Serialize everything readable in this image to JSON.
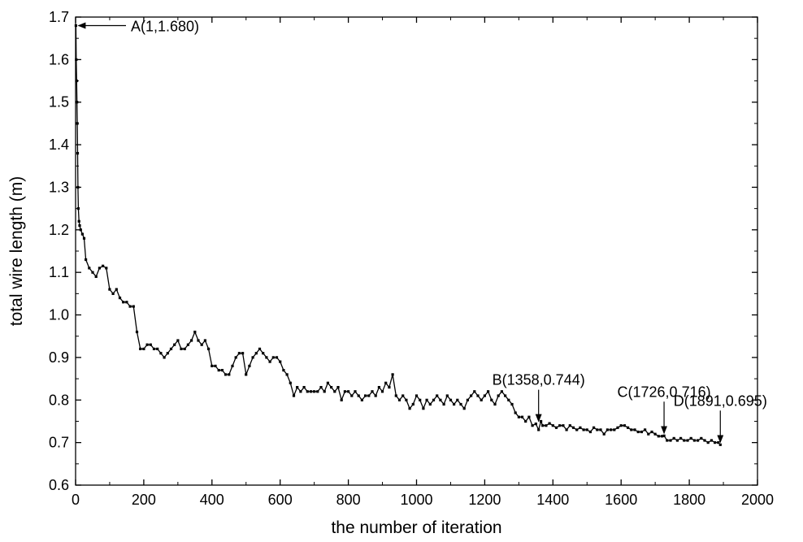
{
  "chart_data": {
    "type": "line",
    "title": "",
    "xlabel": "the number of iteration",
    "ylabel": "total wire length (m)",
    "xlim": [
      0,
      2000
    ],
    "ylim": [
      0.6,
      1.7
    ],
    "xticks": [
      0,
      200,
      400,
      600,
      800,
      1000,
      1200,
      1400,
      1600,
      1800,
      2000
    ],
    "yticks": [
      0.6,
      0.7,
      0.8,
      0.9,
      1.0,
      1.1,
      1.2,
      1.3,
      1.4,
      1.5,
      1.6,
      1.7
    ],
    "xtick_labels": [
      "0",
      "200",
      "400",
      "600",
      "800",
      "1000",
      "1200",
      "1400",
      "1600",
      "1800",
      "2000"
    ],
    "ytick_labels": [
      "0.6",
      "0.7",
      "0.8",
      "0.9",
      "1.0",
      "1.1",
      "1.2",
      "1.3",
      "1.4",
      "1.5",
      "1.6",
      "1.7"
    ],
    "grid": false,
    "legend": "none",
    "color": "#000000",
    "series": [
      {
        "x": [
          1,
          2,
          3,
          4,
          5,
          6,
          7,
          8,
          10,
          12,
          15,
          20,
          25,
          30,
          40,
          50,
          60,
          70,
          80,
          90,
          100,
          110,
          120,
          130,
          140,
          150,
          160,
          170,
          180,
          190,
          200,
          210,
          220,
          230,
          240,
          250,
          260,
          270,
          280,
          290,
          300,
          310,
          320,
          330,
          340,
          350,
          360,
          370,
          380,
          390,
          400,
          410,
          420,
          430,
          440,
          450,
          460,
          470,
          480,
          490,
          500,
          510,
          520,
          530,
          540,
          550,
          560,
          570,
          580,
          590,
          600,
          610,
          620,
          630,
          640,
          650,
          660,
          670,
          680,
          690,
          700,
          710,
          720,
          730,
          740,
          750,
          760,
          770,
          780,
          790,
          800,
          810,
          820,
          830,
          840,
          850,
          860,
          870,
          880,
          890,
          900,
          910,
          920,
          930,
          940,
          950,
          960,
          970,
          980,
          990,
          1000,
          1010,
          1020,
          1030,
          1040,
          1050,
          1060,
          1070,
          1080,
          1090,
          1100,
          1110,
          1120,
          1130,
          1140,
          1150,
          1160,
          1170,
          1180,
          1190,
          1200,
          1210,
          1220,
          1230,
          1240,
          1250,
          1260,
          1270,
          1280,
          1290,
          1300,
          1310,
          1320,
          1330,
          1340,
          1350,
          1358,
          1365,
          1370,
          1380,
          1390,
          1400,
          1410,
          1420,
          1430,
          1440,
          1450,
          1460,
          1470,
          1480,
          1490,
          1500,
          1510,
          1520,
          1530,
          1540,
          1550,
          1560,
          1570,
          1580,
          1590,
          1600,
          1610,
          1620,
          1630,
          1640,
          1650,
          1660,
          1670,
          1680,
          1690,
          1700,
          1710,
          1720,
          1726,
          1735,
          1745,
          1755,
          1765,
          1775,
          1785,
          1795,
          1805,
          1815,
          1825,
          1835,
          1845,
          1855,
          1865,
          1875,
          1885,
          1891
        ],
        "y": [
          1.68,
          1.6,
          1.55,
          1.5,
          1.45,
          1.38,
          1.3,
          1.25,
          1.22,
          1.21,
          1.2,
          1.19,
          1.18,
          1.13,
          1.11,
          1.1,
          1.09,
          1.11,
          1.115,
          1.11,
          1.06,
          1.05,
          1.06,
          1.04,
          1.03,
          1.03,
          1.02,
          1.02,
          0.96,
          0.92,
          0.92,
          0.93,
          0.93,
          0.92,
          0.92,
          0.91,
          0.9,
          0.91,
          0.92,
          0.93,
          0.94,
          0.92,
          0.92,
          0.93,
          0.94,
          0.96,
          0.94,
          0.93,
          0.94,
          0.92,
          0.88,
          0.88,
          0.87,
          0.87,
          0.86,
          0.86,
          0.88,
          0.9,
          0.91,
          0.91,
          0.86,
          0.88,
          0.9,
          0.91,
          0.92,
          0.91,
          0.9,
          0.89,
          0.9,
          0.9,
          0.89,
          0.87,
          0.86,
          0.84,
          0.81,
          0.83,
          0.82,
          0.83,
          0.82,
          0.82,
          0.82,
          0.82,
          0.83,
          0.82,
          0.84,
          0.83,
          0.82,
          0.83,
          0.8,
          0.82,
          0.82,
          0.81,
          0.82,
          0.81,
          0.8,
          0.81,
          0.81,
          0.82,
          0.81,
          0.83,
          0.82,
          0.84,
          0.83,
          0.86,
          0.81,
          0.8,
          0.81,
          0.8,
          0.78,
          0.79,
          0.81,
          0.8,
          0.78,
          0.8,
          0.79,
          0.8,
          0.81,
          0.8,
          0.79,
          0.81,
          0.8,
          0.79,
          0.8,
          0.79,
          0.78,
          0.8,
          0.81,
          0.82,
          0.81,
          0.8,
          0.81,
          0.82,
          0.8,
          0.79,
          0.81,
          0.82,
          0.81,
          0.8,
          0.79,
          0.77,
          0.76,
          0.76,
          0.75,
          0.76,
          0.74,
          0.744,
          0.73,
          0.75,
          0.74,
          0.74,
          0.745,
          0.74,
          0.735,
          0.74,
          0.74,
          0.73,
          0.74,
          0.735,
          0.73,
          0.735,
          0.73,
          0.73,
          0.725,
          0.735,
          0.73,
          0.73,
          0.72,
          0.73,
          0.73,
          0.73,
          0.735,
          0.74,
          0.74,
          0.735,
          0.73,
          0.73,
          0.725,
          0.725,
          0.73,
          0.72,
          0.725,
          0.72,
          0.715,
          0.715,
          0.716,
          0.705,
          0.705,
          0.71,
          0.705,
          0.71,
          0.705,
          0.705,
          0.71,
          0.705,
          0.705,
          0.71,
          0.705,
          0.7,
          0.705,
          0.7,
          0.7,
          0.695
        ]
      }
    ],
    "annotations": [
      {
        "text": "A(1,1.680)",
        "x": 1,
        "y": 1.68,
        "arrow": "from-right"
      },
      {
        "text": "B(1358,0.744)",
        "x": 1358,
        "y": 0.744,
        "arrow": "from-above"
      },
      {
        "text": "C(1726,0.716)",
        "x": 1726,
        "y": 0.716,
        "arrow": "from-above"
      },
      {
        "text": "D(1891,0.695)",
        "x": 1891,
        "y": 0.695,
        "arrow": "from-above"
      }
    ]
  }
}
